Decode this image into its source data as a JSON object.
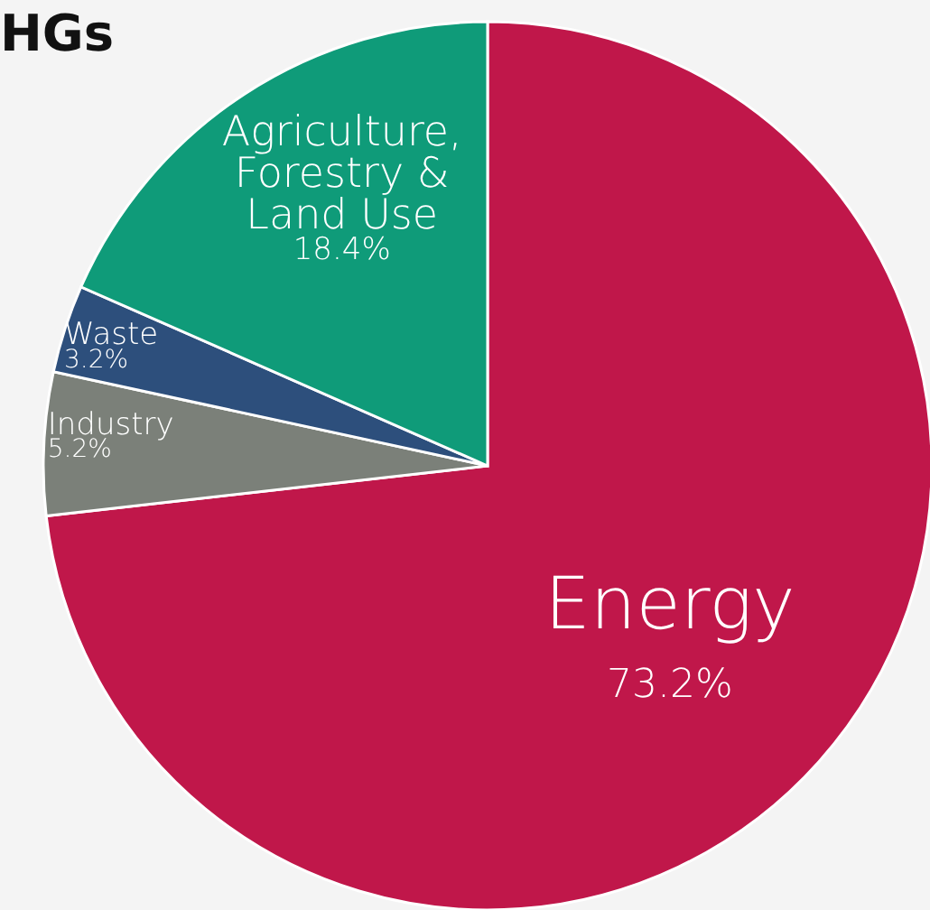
{
  "chart_data": {
    "type": "pie",
    "title": "HGs",
    "categories": [
      "Energy",
      "Industry",
      "Waste",
      "Agriculture,\nForestry &\nLand Use"
    ],
    "values": [
      73.2,
      5.2,
      3.2,
      18.4
    ],
    "value_labels": [
      "73.2%",
      "5.2%",
      "3.2%",
      "18.4%"
    ],
    "colors": [
      "#c0174a",
      "#7b8079",
      "#2d4f7c",
      "#0f9b79"
    ]
  }
}
